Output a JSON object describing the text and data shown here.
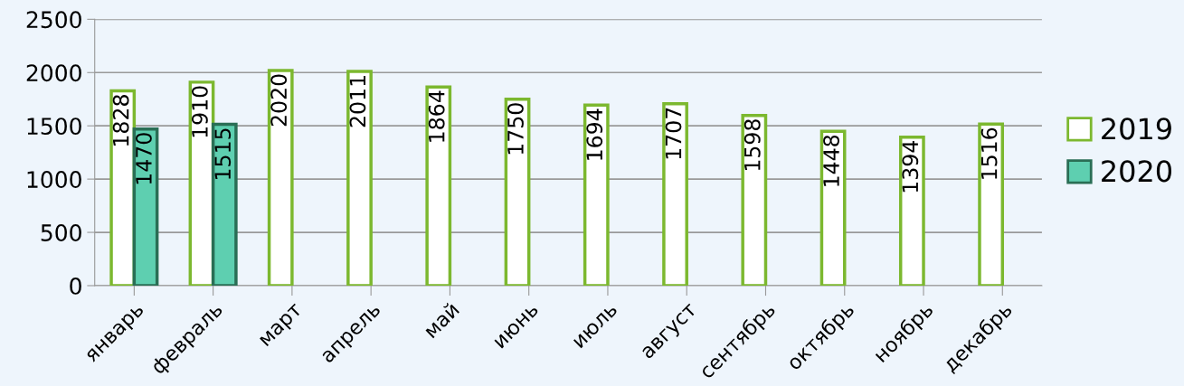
{
  "chart_data": {
    "type": "bar",
    "categories": [
      "январь",
      "февраль",
      "март",
      "апрель",
      "май",
      "июнь",
      "июль",
      "август",
      "сентябрь",
      "октябрь",
      "ноябрь",
      "декабрь"
    ],
    "series": [
      {
        "name": "2019",
        "color": "#7cb82f",
        "values": [
          1828,
          1910,
          2020,
          2011,
          1864,
          1750,
          1694,
          1707,
          1598,
          1448,
          1394,
          1516
        ]
      },
      {
        "name": "2020",
        "color": "#5ecfb0",
        "values": [
          1470,
          1515,
          null,
          null,
          null,
          null,
          null,
          null,
          null,
          null,
          null,
          null
        ]
      }
    ],
    "ylim": [
      0,
      2500
    ],
    "yticks": [
      0,
      500,
      1000,
      1500,
      2000,
      2500
    ],
    "grid": "y",
    "legend": "right",
    "data_labels": true
  }
}
